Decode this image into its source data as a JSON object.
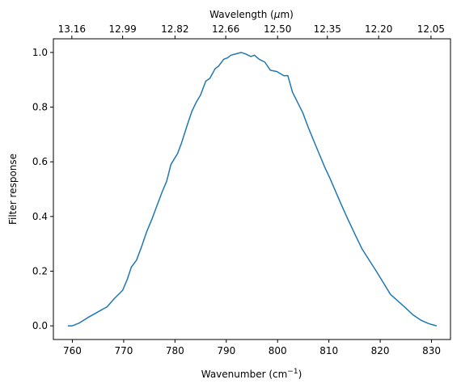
{
  "chart_data": {
    "type": "line",
    "xlabel": "Wavenumber (cm",
    "xlabel_sup": "−1",
    "xlabel_end": ")",
    "ylabel": "Filter response",
    "top_xlabel": "Wavelength (",
    "top_xlabel_mu": "μ",
    "top_xlabel_end": "m)",
    "xlim": [
      756.3,
      833.7
    ],
    "ylim": [
      -0.05,
      1.05
    ],
    "xticks": [
      760,
      770,
      780,
      790,
      800,
      810,
      820,
      830
    ],
    "yticks": [
      0.0,
      0.2,
      0.4,
      0.6,
      0.8,
      1.0
    ],
    "yticklabels": [
      "0.0",
      "0.2",
      "0.4",
      "0.6",
      "0.8",
      "1.0"
    ],
    "top_ticks": [
      {
        "wavenumber": 759.9,
        "label": "13.16"
      },
      {
        "wavenumber": 769.8,
        "label": "12.99"
      },
      {
        "wavenumber": 780.0,
        "label": "12.82"
      },
      {
        "wavenumber": 789.9,
        "label": "12.66"
      },
      {
        "wavenumber": 800.0,
        "label": "12.50"
      },
      {
        "wavenumber": 809.7,
        "label": "12.35"
      },
      {
        "wavenumber": 819.7,
        "label": "12.20"
      },
      {
        "wavenumber": 829.9,
        "label": "12.05"
      }
    ],
    "line_color": "#1f77b4",
    "grid": false,
    "series": [
      {
        "x": [
          759.1,
          760.0,
          761.3,
          763.0,
          764.9,
          766.8,
          768.2,
          769.8,
          770.7,
          771.5,
          772.5,
          773.5,
          774.5,
          775.5,
          776.5,
          777.5,
          778.4,
          779.2,
          780.5,
          781.3,
          782.4,
          783.3,
          784.2,
          785.0,
          786.0,
          786.8,
          787.8,
          788.5,
          789.5,
          790.2,
          790.9,
          791.9,
          792.9,
          793.7,
          794.8,
          795.5,
          796.4,
          797.5,
          798.6,
          799.9,
          801.2,
          802.0,
          802.9,
          804.1,
          804.9,
          806.0,
          807.2,
          808.2,
          809.2,
          810.2,
          811.0,
          812.5,
          813.7,
          815.2,
          816.5,
          819.4,
          822.0,
          824.7,
          826.4,
          828.0,
          829.2,
          830.0,
          831.0
        ],
        "y": [
          0.0,
          0.0,
          0.01,
          0.03,
          0.05,
          0.07,
          0.1,
          0.13,
          0.17,
          0.215,
          0.24,
          0.29,
          0.345,
          0.39,
          0.44,
          0.49,
          0.53,
          0.59,
          0.63,
          0.67,
          0.735,
          0.785,
          0.82,
          0.845,
          0.895,
          0.905,
          0.94,
          0.95,
          0.975,
          0.98,
          0.99,
          0.995,
          1.0,
          0.995,
          0.985,
          0.99,
          0.975,
          0.965,
          0.935,
          0.93,
          0.915,
          0.915,
          0.855,
          0.81,
          0.78,
          0.725,
          0.67,
          0.625,
          0.58,
          0.54,
          0.505,
          0.44,
          0.39,
          0.33,
          0.28,
          0.195,
          0.115,
          0.07,
          0.04,
          0.02,
          0.01,
          0.005,
          0.0
        ]
      }
    ]
  }
}
